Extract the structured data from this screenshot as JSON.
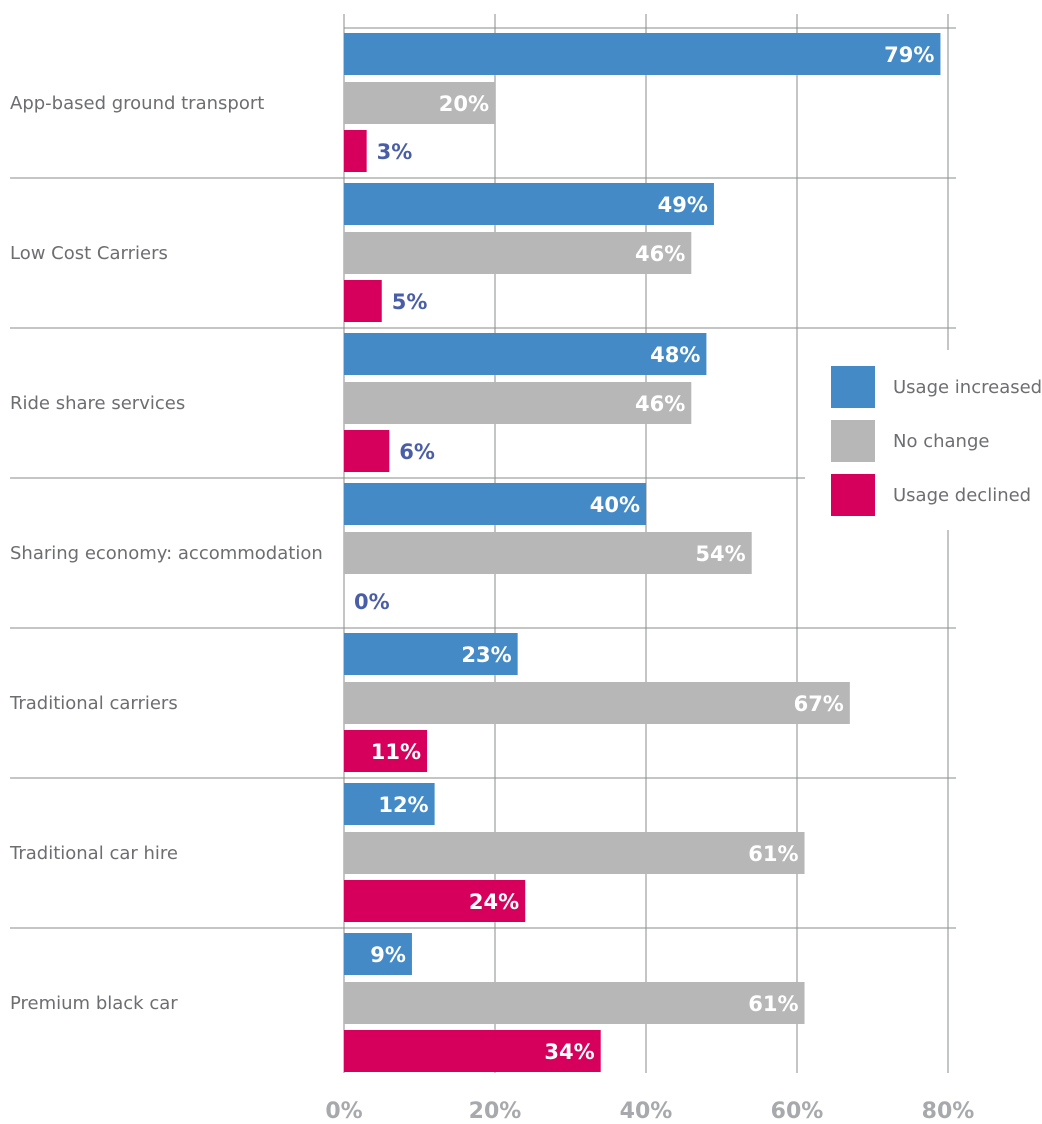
{
  "chart_data": {
    "type": "bar",
    "orientation": "horizontal",
    "categories": [
      "App-based ground transport",
      "Low Cost Carriers",
      "Ride share services",
      "Sharing economy: accommodation",
      "Traditional carriers",
      "Traditional car hire",
      "Premium black car"
    ],
    "series": [
      {
        "name": "Usage increased",
        "color": "#438ac7",
        "values": [
          79,
          49,
          48,
          40,
          23,
          12,
          9
        ],
        "labels": [
          "79%",
          "49%",
          "48%",
          "40%",
          "23%",
          "12%",
          "9%"
        ]
      },
      {
        "name": "No change",
        "color": "#b7b7b7",
        "values": [
          20,
          46,
          46,
          54,
          67,
          61,
          61
        ],
        "labels": [
          "20%",
          "46%",
          "46%",
          "54%",
          "67%",
          "61%",
          "61%"
        ]
      },
      {
        "name": "Usage declined",
        "color": "#d6005c",
        "values": [
          3,
          5,
          6,
          0,
          11,
          24,
          34
        ],
        "labels": [
          "3%",
          "5%",
          "6%",
          "0%",
          "11%",
          "24%",
          "34%"
        ]
      }
    ],
    "xlim": [
      0,
      80
    ],
    "xticks": [
      0,
      20,
      40,
      60,
      80
    ],
    "xtick_labels": [
      "0%",
      "20%",
      "40%",
      "60%",
      "80%"
    ],
    "grid": true,
    "legend_position": "right",
    "title": "",
    "xlabel": "",
    "ylabel": ""
  }
}
